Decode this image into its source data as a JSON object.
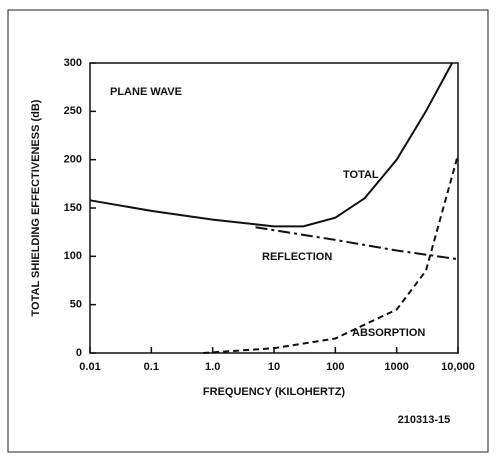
{
  "chart_data": {
    "type": "line",
    "xlabel": "FREQUENCY (KILOHERTZ)",
    "ylabel": "TOTAL SHIELDING EFFECTIVENESS (dB)",
    "annotations": [
      "PLANE WAVE",
      "210313-15"
    ],
    "xscale": "log",
    "xlim": [
      0.01,
      10000
    ],
    "ylim": [
      0,
      300
    ],
    "xticks": [
      0.01,
      0.1,
      {
        "value": 1,
        "label": "1.0"
      },
      10,
      100,
      1000,
      {
        "value": 10000,
        "label": "10,000"
      }
    ],
    "yticks": [
      0,
      50,
      100,
      150,
      200,
      250,
      300
    ],
    "series": [
      {
        "name": "TOTAL",
        "color": "#111111",
        "style": "solid",
        "x": [
          0.01,
          0.1,
          1,
          10,
          30,
          100,
          300,
          1000,
          3000,
          8000
        ],
        "values": [
          158,
          147,
          138,
          131,
          131,
          140,
          160,
          200,
          250,
          300
        ]
      },
      {
        "name": "REFLECTION",
        "color": "#111111",
        "style": "dashdot",
        "x": [
          5,
          100,
          1000,
          10000
        ],
        "values": [
          130,
          117,
          106,
          97
        ]
      },
      {
        "name": "ABSORPTION",
        "color": "#111111",
        "style": "dashed",
        "x": [
          0.7,
          10,
          100,
          1000,
          3000,
          10000
        ],
        "values": [
          0,
          5,
          15,
          45,
          85,
          205
        ]
      }
    ]
  }
}
